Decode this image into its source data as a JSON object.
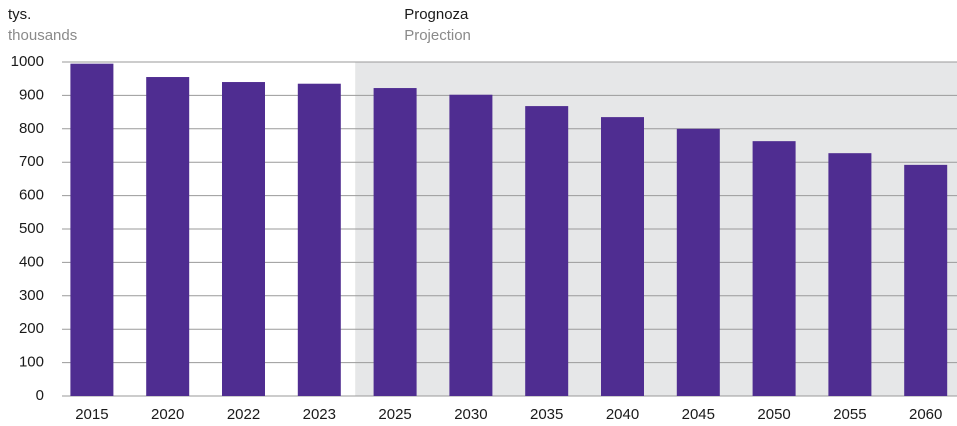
{
  "chart_data": {
    "type": "bar",
    "y_label": "tys.",
    "y_label_en": "thousands",
    "annotation": "Prognoza",
    "annotation_en": "Projection",
    "shaded_from": "2025",
    "categories": [
      "2015",
      "2020",
      "2022",
      "2023",
      "2025",
      "2030",
      "2035",
      "2040",
      "2045",
      "2050",
      "2055",
      "2060"
    ],
    "values": [
      995,
      955,
      940,
      935,
      922,
      902,
      868,
      835,
      800,
      763,
      727,
      692
    ],
    "color": "#4f2d91",
    "shade_color": "#e6e7e8",
    "ylim": [
      0,
      1000
    ],
    "yticks": [
      0,
      100,
      200,
      300,
      400,
      500,
      600,
      700,
      800,
      900,
      1000
    ],
    "grid": true
  }
}
